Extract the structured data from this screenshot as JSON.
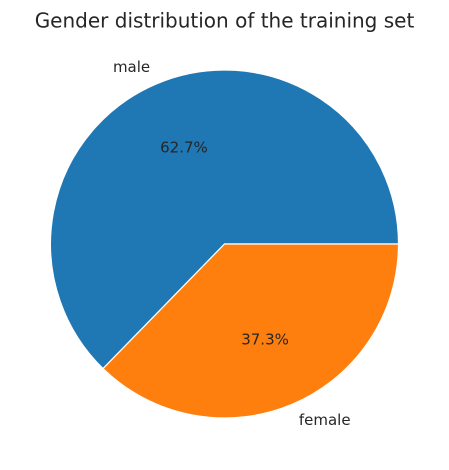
{
  "chart_data": {
    "type": "pie",
    "title": "Gender distribution of the training set",
    "start_angle_deg": 0,
    "direction": "counterclockwise",
    "slices": [
      {
        "label": "male",
        "value": 62.7,
        "percent_label": "62.7%",
        "color": "#1f77b4"
      },
      {
        "label": "female",
        "value": 37.3,
        "percent_label": "37.3%",
        "color": "#ff7f0e"
      }
    ]
  }
}
